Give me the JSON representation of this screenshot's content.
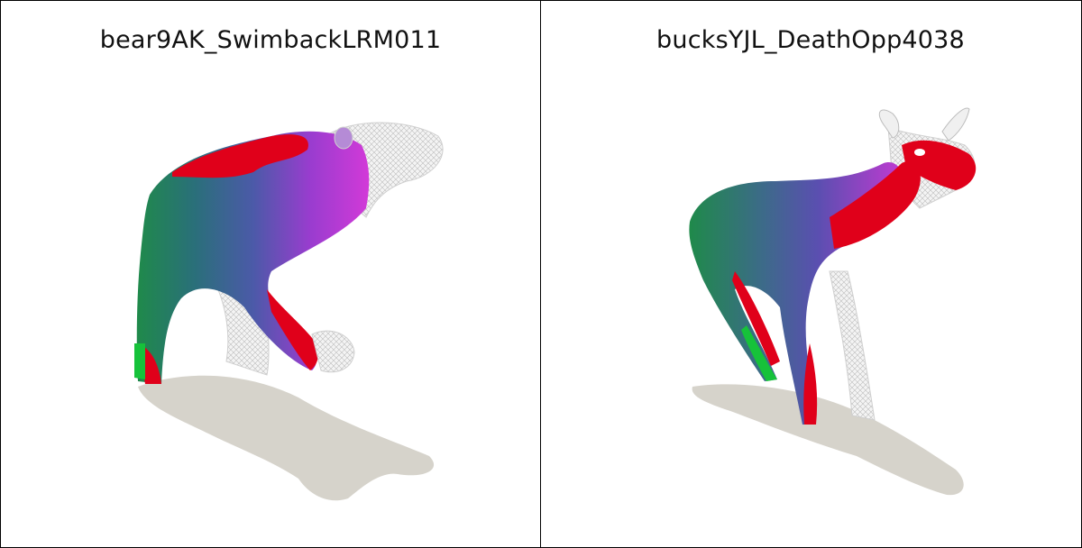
{
  "panels": [
    {
      "title": "bear9AK_SwimbackLRM011"
    },
    {
      "title": "bucksYJL_DeathOpp4038"
    }
  ],
  "colors": {
    "background": "#ffffff",
    "border": "#000000",
    "shadow": "#d6d3cb",
    "wireframe": "#d9d9d9",
    "mesh_green": "#1f7a4f",
    "mesh_blue": "#4b5aa8",
    "mesh_magenta": "#c23ad2",
    "mesh_red": "#e0001a"
  }
}
